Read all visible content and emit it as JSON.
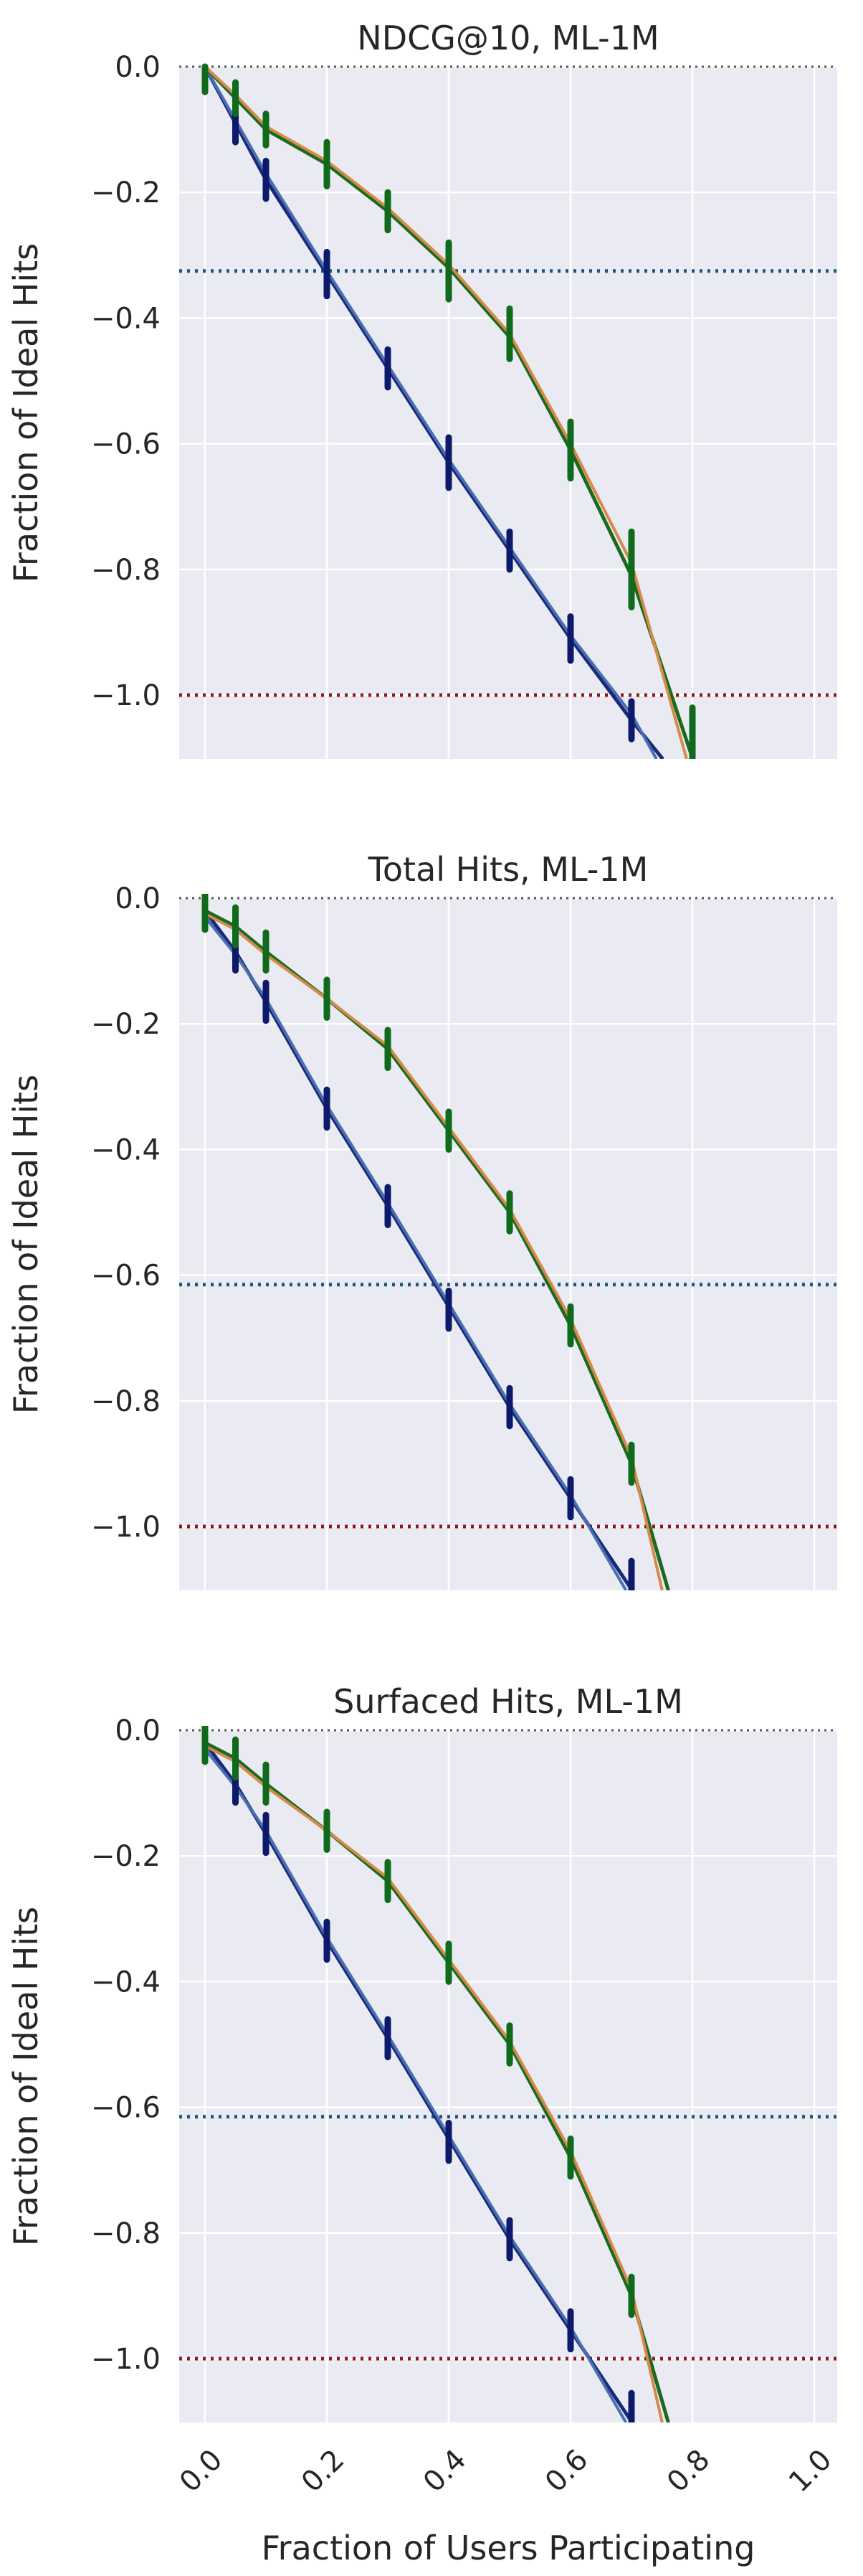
{
  "chart_data": [
    {
      "type": "line",
      "title": "NDCG@10, ML-1M",
      "ylabel": "Fraction of Ideal Hits",
      "xlabel": "",
      "xlim": [
        -0.04,
        1.04
      ],
      "ylim": [
        -1.1,
        0.0
      ],
      "xticks": [
        0.0,
        0.2,
        0.4,
        0.6,
        0.8,
        1.0
      ],
      "yticks": [
        0.0,
        -0.2,
        -0.4,
        -0.6,
        -0.8,
        -1.0
      ],
      "ytick_labels": [
        "0.0",
        "−0.2",
        "−0.4",
        "−0.6",
        "−0.8",
        "−1.0"
      ],
      "xtick_labels": [],
      "grid": true,
      "hlines": [
        {
          "y": 0.0,
          "color": "#555555"
        },
        {
          "y": -0.325,
          "color": "#1a5a78"
        },
        {
          "y": -1.0,
          "color": "#8b1a1a"
        }
      ],
      "series": [
        {
          "color": "#1a2a7a",
          "width": 5,
          "x": [
            0.0,
            0.05,
            0.1,
            0.2,
            0.3,
            0.4,
            0.5,
            0.6,
            0.7,
            0.75
          ],
          "y": [
            0.0,
            -0.09,
            -0.18,
            -0.33,
            -0.48,
            -0.63,
            -0.77,
            -0.91,
            -1.04,
            -1.1
          ]
        },
        {
          "color": "#4a6fb0",
          "width": 4,
          "x": [
            0.0,
            0.05,
            0.1,
            0.2,
            0.3,
            0.4,
            0.5,
            0.6,
            0.7,
            0.74
          ],
          "y": [
            0.0,
            -0.085,
            -0.17,
            -0.325,
            -0.475,
            -0.625,
            -0.765,
            -0.905,
            -1.03,
            -1.1
          ]
        },
        {
          "color": "#1a6a20",
          "width": 5,
          "x": [
            0.0,
            0.05,
            0.1,
            0.2,
            0.3,
            0.4,
            0.5,
            0.6,
            0.7,
            0.8
          ],
          "y": [
            0.0,
            -0.05,
            -0.1,
            -0.155,
            -0.23,
            -0.32,
            -0.43,
            -0.61,
            -0.81,
            -1.1
          ]
        },
        {
          "color": "#d58a4a",
          "width": 4,
          "x": [
            0.0,
            0.05,
            0.1,
            0.2,
            0.3,
            0.4,
            0.5,
            0.6,
            0.7,
            0.79
          ],
          "y": [
            0.0,
            -0.045,
            -0.095,
            -0.15,
            -0.225,
            -0.315,
            -0.425,
            -0.6,
            -0.79,
            -1.1
          ]
        }
      ],
      "error_bars": [
        {
          "color": "#0d1a6b",
          "x": [
            0.0,
            0.05,
            0.1,
            0.2,
            0.3,
            0.4,
            0.5,
            0.6,
            0.7
          ],
          "y": [
            -0.02,
            -0.09,
            -0.18,
            -0.33,
            -0.48,
            -0.63,
            -0.77,
            -0.91,
            -1.04
          ],
          "half": [
            0.02,
            0.03,
            0.03,
            0.035,
            0.03,
            0.04,
            0.03,
            0.035,
            0.03
          ]
        },
        {
          "color": "#0f6a1c",
          "x": [
            0.0,
            0.05,
            0.1,
            0.2,
            0.3,
            0.4,
            0.5,
            0.6,
            0.7,
            0.8
          ],
          "y": [
            -0.02,
            -0.05,
            -0.1,
            -0.155,
            -0.23,
            -0.325,
            -0.425,
            -0.61,
            -0.8,
            -1.065
          ],
          "half": [
            0.02,
            0.025,
            0.025,
            0.035,
            0.03,
            0.045,
            0.04,
            0.045,
            0.06,
            0.045
          ]
        }
      ]
    },
    {
      "type": "line",
      "title": "Total Hits, ML-1M",
      "ylabel": "Fraction of Ideal Hits",
      "xlabel": "",
      "xlim": [
        -0.04,
        1.04
      ],
      "ylim": [
        -1.1,
        0.0
      ],
      "xticks": [
        0.0,
        0.2,
        0.4,
        0.6,
        0.8,
        1.0
      ],
      "yticks": [
        0.0,
        -0.2,
        -0.4,
        -0.6,
        -0.8,
        -1.0
      ],
      "ytick_labels": [
        "0.0",
        "−0.2",
        "−0.4",
        "−0.6",
        "−0.8",
        "−1.0"
      ],
      "xtick_labels": [],
      "grid": true,
      "hlines": [
        {
          "y": 0.0,
          "color": "#555555"
        },
        {
          "y": -0.615,
          "color": "#1a5a78"
        },
        {
          "y": -1.0,
          "color": "#8b1a1a"
        }
      ],
      "series": [
        {
          "color": "#1a2a7a",
          "width": 5,
          "x": [
            0.0,
            0.05,
            0.1,
            0.2,
            0.3,
            0.4,
            0.5,
            0.6,
            0.7
          ],
          "y": [
            -0.02,
            -0.085,
            -0.165,
            -0.335,
            -0.49,
            -0.65,
            -0.81,
            -0.955,
            -1.1
          ]
        },
        {
          "color": "#4a6fb0",
          "width": 4,
          "x": [
            0.0,
            0.05,
            0.1,
            0.2,
            0.3,
            0.4,
            0.5,
            0.6,
            0.69
          ],
          "y": [
            -0.03,
            -0.09,
            -0.16,
            -0.33,
            -0.485,
            -0.645,
            -0.805,
            -0.95,
            -1.1
          ]
        },
        {
          "color": "#1a6a20",
          "width": 5,
          "x": [
            0.0,
            0.05,
            0.1,
            0.2,
            0.3,
            0.4,
            0.5,
            0.6,
            0.7,
            0.76
          ],
          "y": [
            -0.02,
            -0.045,
            -0.085,
            -0.16,
            -0.24,
            -0.37,
            -0.5,
            -0.68,
            -0.9,
            -1.1
          ]
        },
        {
          "color": "#d58a4a",
          "width": 4,
          "x": [
            0.0,
            0.05,
            0.1,
            0.2,
            0.3,
            0.4,
            0.5,
            0.6,
            0.7,
            0.75
          ],
          "y": [
            -0.025,
            -0.05,
            -0.09,
            -0.16,
            -0.235,
            -0.365,
            -0.495,
            -0.67,
            -0.89,
            -1.1
          ]
        }
      ],
      "error_bars": [
        {
          "color": "#0d1a6b",
          "x": [
            0.0,
            0.05,
            0.1,
            0.2,
            0.3,
            0.4,
            0.5,
            0.6,
            0.7
          ],
          "y": [
            -0.02,
            -0.085,
            -0.165,
            -0.335,
            -0.49,
            -0.655,
            -0.81,
            -0.955,
            -1.085
          ]
        },
        {
          "color": "#0f6a1c",
          "x": [
            0.0,
            0.05,
            0.1,
            0.2,
            0.3,
            0.4,
            0.5,
            0.6,
            0.7
          ],
          "y": [
            -0.02,
            -0.045,
            -0.085,
            -0.16,
            -0.24,
            -0.37,
            -0.5,
            -0.68,
            -0.9
          ]
        }
      ]
    },
    {
      "type": "line",
      "title": "Surfaced Hits, ML-1M",
      "ylabel": "Fraction of Ideal Hits",
      "xlabel": "Fraction of Users Participating",
      "xlim": [
        -0.04,
        1.04
      ],
      "ylim": [
        -1.1,
        0.0
      ],
      "xticks": [
        0.0,
        0.2,
        0.4,
        0.6,
        0.8,
        1.0
      ],
      "yticks": [
        0.0,
        -0.2,
        -0.4,
        -0.6,
        -0.8,
        -1.0
      ],
      "ytick_labels": [
        "0.0",
        "−0.2",
        "−0.4",
        "−0.6",
        "−0.8",
        "−1.0"
      ],
      "xtick_labels": [
        "0.0",
        "0.2",
        "0.4",
        "0.6",
        "0.8",
        "1.0"
      ],
      "grid": true,
      "hlines": [
        {
          "y": 0.0,
          "color": "#555555"
        },
        {
          "y": -0.615,
          "color": "#1a5a78"
        },
        {
          "y": -1.0,
          "color": "#8b1a1a"
        }
      ],
      "series": [
        {
          "color": "#1a2a7a",
          "width": 5,
          "x": [
            0.0,
            0.05,
            0.1,
            0.2,
            0.3,
            0.4,
            0.5,
            0.6,
            0.7
          ],
          "y": [
            -0.02,
            -0.085,
            -0.165,
            -0.335,
            -0.49,
            -0.65,
            -0.81,
            -0.955,
            -1.1
          ]
        },
        {
          "color": "#4a6fb0",
          "width": 4,
          "x": [
            0.0,
            0.05,
            0.1,
            0.2,
            0.3,
            0.4,
            0.5,
            0.6,
            0.69
          ],
          "y": [
            -0.03,
            -0.09,
            -0.16,
            -0.33,
            -0.485,
            -0.645,
            -0.805,
            -0.95,
            -1.1
          ]
        },
        {
          "color": "#1a6a20",
          "width": 5,
          "x": [
            0.0,
            0.05,
            0.1,
            0.2,
            0.3,
            0.4,
            0.5,
            0.6,
            0.7,
            0.76
          ],
          "y": [
            -0.02,
            -0.045,
            -0.085,
            -0.16,
            -0.24,
            -0.37,
            -0.5,
            -0.68,
            -0.9,
            -1.1
          ]
        },
        {
          "color": "#d58a4a",
          "width": 4,
          "x": [
            0.0,
            0.05,
            0.1,
            0.2,
            0.3,
            0.4,
            0.5,
            0.6,
            0.7,
            0.75
          ],
          "y": [
            -0.025,
            -0.05,
            -0.09,
            -0.16,
            -0.235,
            -0.365,
            -0.495,
            -0.67,
            -0.89,
            -1.1
          ]
        }
      ],
      "error_bars": [
        {
          "color": "#0d1a6b",
          "x": [
            0.0,
            0.05,
            0.1,
            0.2,
            0.3,
            0.4,
            0.5,
            0.6,
            0.7
          ],
          "y": [
            -0.02,
            -0.085,
            -0.165,
            -0.335,
            -0.49,
            -0.655,
            -0.81,
            -0.955,
            -1.085
          ]
        },
        {
          "color": "#0f6a1c",
          "x": [
            0.0,
            0.05,
            0.1,
            0.2,
            0.3,
            0.4,
            0.5,
            0.6,
            0.7
          ],
          "y": [
            -0.02,
            -0.045,
            -0.085,
            -0.16,
            -0.24,
            -0.37,
            -0.5,
            -0.68,
            -0.9
          ]
        }
      ]
    }
  ]
}
